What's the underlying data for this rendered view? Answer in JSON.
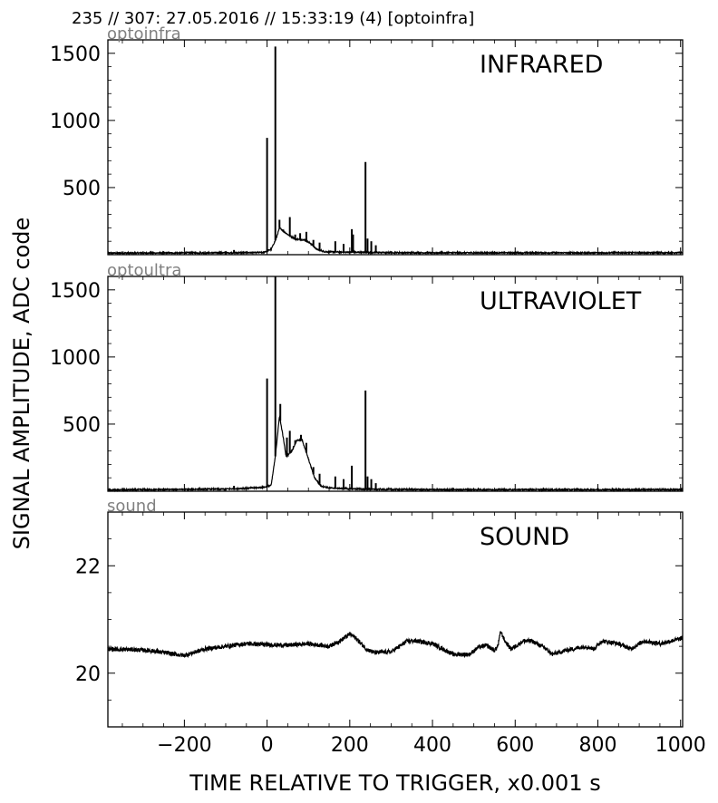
{
  "header": {
    "title": "235 // 307:   27.05.2016 // 15:33:19 (4)  [optoinfra]"
  },
  "chart_data": {
    "type": "line",
    "xlabel": "TIME RELATIVE TO TRIGGER,   x0.001 s",
    "ylabel": "SIGNAL AMPLITUDE,  ADC code",
    "xlim": [
      -385,
      1005
    ],
    "x_ticks": [
      -200,
      0,
      200,
      400,
      600,
      800,
      1000
    ],
    "x_tick_labels": [
      "−200",
      "0",
      "200",
      "400",
      "600",
      "800",
      "1000"
    ],
    "line_color": "#000000",
    "panels": [
      {
        "id": "infrared",
        "channel": "optoinfra",
        "label": "INFRARED",
        "ylim": [
          0,
          1600
        ],
        "y_ticks": [
          500,
          1000,
          1500
        ],
        "y_tick_labels": [
          "500",
          "1000",
          "1500"
        ],
        "baseline": 15,
        "spikes": [
          [
            -80,
            35
          ],
          [
            0,
            870
          ],
          [
            20,
            1550
          ],
          [
            30,
            260
          ],
          [
            55,
            280
          ],
          [
            68,
            150
          ],
          [
            80,
            160
          ],
          [
            95,
            170
          ],
          [
            112,
            110
          ],
          [
            127,
            90
          ],
          [
            165,
            100
          ],
          [
            185,
            80
          ],
          [
            205,
            190
          ],
          [
            208,
            150
          ],
          [
            238,
            690
          ],
          [
            243,
            120
          ],
          [
            252,
            100
          ],
          [
            263,
            70
          ]
        ],
        "envelope": [
          [
            -380,
            12
          ],
          [
            -100,
            14
          ],
          [
            -10,
            16
          ],
          [
            10,
            40
          ],
          [
            22,
            120
          ],
          [
            30,
            200
          ],
          [
            38,
            180
          ],
          [
            50,
            150
          ],
          [
            70,
            115
          ],
          [
            90,
            110
          ],
          [
            105,
            85
          ],
          [
            120,
            40
          ],
          [
            140,
            22
          ],
          [
            200,
            18
          ],
          [
            260,
            16
          ],
          [
            400,
            14
          ],
          [
            1000,
            14
          ]
        ]
      },
      {
        "id": "ultraviolet",
        "channel": "optoultra",
        "label": "ULTRAVIOLET",
        "ylim": [
          0,
          1600
        ],
        "y_ticks": [
          500,
          1000,
          1500
        ],
        "y_tick_labels": [
          "500",
          "1000",
          "1500"
        ],
        "baseline": 15,
        "spikes": [
          [
            -80,
            40
          ],
          [
            0,
            840
          ],
          [
            20,
            1600
          ],
          [
            32,
            650
          ],
          [
            48,
            400
          ],
          [
            55,
            450
          ],
          [
            68,
            380
          ],
          [
            82,
            420
          ],
          [
            95,
            360
          ],
          [
            112,
            180
          ],
          [
            127,
            130
          ],
          [
            165,
            110
          ],
          [
            185,
            90
          ],
          [
            205,
            190
          ],
          [
            238,
            750
          ],
          [
            243,
            110
          ],
          [
            252,
            90
          ],
          [
            263,
            60
          ]
        ],
        "envelope": [
          [
            -380,
            10
          ],
          [
            -100,
            16
          ],
          [
            -30,
            25
          ],
          [
            -5,
            30
          ],
          [
            10,
            45
          ],
          [
            20,
            260
          ],
          [
            30,
            560
          ],
          [
            38,
            420
          ],
          [
            46,
            260
          ],
          [
            60,
            300
          ],
          [
            72,
            380
          ],
          [
            85,
            380
          ],
          [
            100,
            240
          ],
          [
            115,
            100
          ],
          [
            130,
            40
          ],
          [
            150,
            25
          ],
          [
            200,
            18
          ],
          [
            260,
            14
          ],
          [
            400,
            12
          ],
          [
            1000,
            12
          ]
        ]
      },
      {
        "id": "sound",
        "channel": "sound",
        "label": "SOUND",
        "ylim": [
          19,
          23
        ],
        "y_ticks": [
          20,
          22
        ],
        "y_tick_labels": [
          "20",
          "22"
        ],
        "noise_amp": 0.04,
        "trace": [
          [
            -385,
            20.45
          ],
          [
            -330,
            20.44
          ],
          [
            -280,
            20.42
          ],
          [
            -230,
            20.36
          ],
          [
            -200,
            20.33
          ],
          [
            -150,
            20.45
          ],
          [
            -100,
            20.5
          ],
          [
            -50,
            20.55
          ],
          [
            0,
            20.53
          ],
          [
            50,
            20.52
          ],
          [
            100,
            20.55
          ],
          [
            150,
            20.5
          ],
          [
            180,
            20.62
          ],
          [
            200,
            20.73
          ],
          [
            215,
            20.65
          ],
          [
            240,
            20.45
          ],
          [
            260,
            20.38
          ],
          [
            300,
            20.4
          ],
          [
            340,
            20.6
          ],
          [
            360,
            20.6
          ],
          [
            400,
            20.55
          ],
          [
            450,
            20.35
          ],
          [
            490,
            20.35
          ],
          [
            510,
            20.48
          ],
          [
            530,
            20.52
          ],
          [
            550,
            20.42
          ],
          [
            558,
            20.5
          ],
          [
            565,
            20.78
          ],
          [
            575,
            20.6
          ],
          [
            590,
            20.45
          ],
          [
            620,
            20.6
          ],
          [
            640,
            20.6
          ],
          [
            670,
            20.48
          ],
          [
            690,
            20.35
          ],
          [
            720,
            20.42
          ],
          [
            770,
            20.5
          ],
          [
            790,
            20.45
          ],
          [
            810,
            20.6
          ],
          [
            850,
            20.55
          ],
          [
            880,
            20.45
          ],
          [
            910,
            20.6
          ],
          [
            950,
            20.55
          ],
          [
            1005,
            20.65
          ]
        ]
      }
    ]
  }
}
